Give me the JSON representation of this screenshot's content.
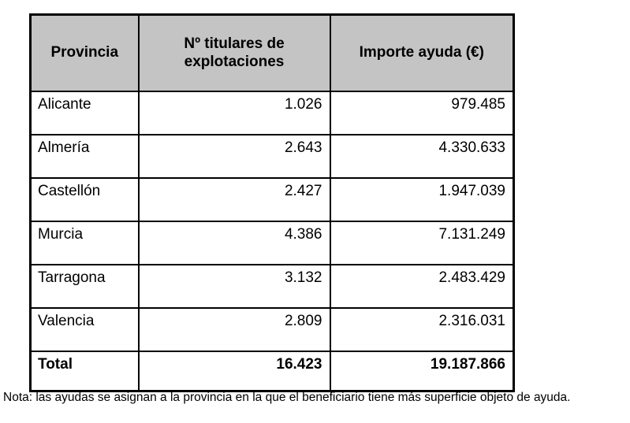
{
  "table": {
    "headers": {
      "province": "Provincia",
      "titulares": "Nº titulares de explotaciones",
      "importe": "Importe ayuda (€)"
    },
    "rows": [
      {
        "province": "Alicante",
        "titulares": "1.026",
        "importe": "979.485"
      },
      {
        "province": "Almería",
        "titulares": "2.643",
        "importe": "4.330.633"
      },
      {
        "province": "Castellón",
        "titulares": "2.427",
        "importe": "1.947.039"
      },
      {
        "province": "Murcia",
        "titulares": "4.386",
        "importe": "7.131.249"
      },
      {
        "province": "Tarragona",
        "titulares": "3.132",
        "importe": "2.483.429"
      },
      {
        "province": "Valencia",
        "titulares": "2.809",
        "importe": "2.316.031"
      }
    ],
    "total": {
      "label": "Total",
      "titulares": "16.423",
      "importe": "19.187.866"
    }
  },
  "note": "Nota: las ayudas se asignan a la provincia en la que el beneficiario tiene más superficie objeto de ayuda.",
  "colors": {
    "header_bg": "#c4c4c4",
    "border": "#000000",
    "text": "#000000"
  }
}
